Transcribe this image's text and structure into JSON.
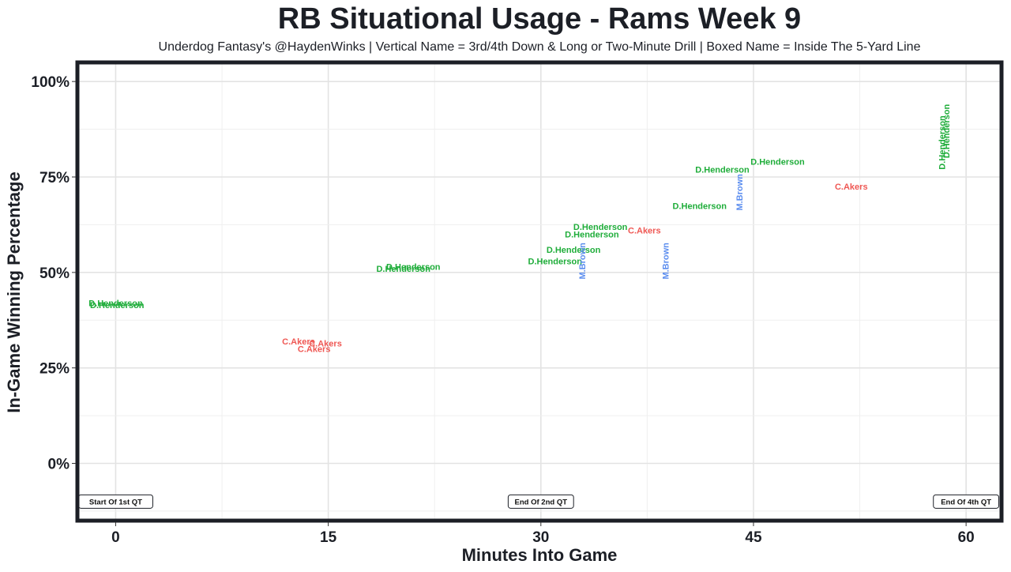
{
  "chart_data": {
    "type": "scatter",
    "title": "RB Situational Usage - Rams Week 9",
    "subtitle": "Underdog Fantasy's @HaydenWinks | Vertical Name = 3rd/4th Down & Long or Two-Minute Drill | Boxed Name = Inside The 5-Yard Line",
    "xlabel": "Minutes Into Game",
    "ylabel": "In-Game Winning Percentage",
    "xlim": [
      -2.7,
      62.5
    ],
    "ylim": [
      -15,
      105
    ],
    "x_ticks": [
      {
        "value": 0,
        "label": "0"
      },
      {
        "value": 15,
        "label": "15"
      },
      {
        "value": 30,
        "label": "30"
      },
      {
        "value": 45,
        "label": "45"
      },
      {
        "value": 60,
        "label": "60"
      }
    ],
    "y_ticks": [
      {
        "value": 0,
        "label": "0%"
      },
      {
        "value": 25,
        "label": "25%"
      },
      {
        "value": 50,
        "label": "50%"
      },
      {
        "value": 75,
        "label": "75%"
      },
      {
        "value": 100,
        "label": "100%"
      }
    ],
    "grid": true,
    "series": [
      {
        "name": "D.Henderson",
        "color": "#1fad3a"
      },
      {
        "name": "C.Akers",
        "color": "#ef5753"
      },
      {
        "name": "M.Brown",
        "color": "#5b8def"
      }
    ],
    "points": [
      {
        "label": "D.Henderson",
        "x": 0.0,
        "y": 42.0,
        "vertical": false
      },
      {
        "label": "D.Henderson",
        "x": 0.1,
        "y": 41.5,
        "vertical": false
      },
      {
        "label": "C.Akers",
        "x": 12.9,
        "y": 32.0,
        "vertical": false
      },
      {
        "label": "C.Akers",
        "x": 14.8,
        "y": 31.5,
        "vertical": false
      },
      {
        "label": "C.Akers",
        "x": 14.0,
        "y": 30.0,
        "vertical": false
      },
      {
        "label": "D.Henderson",
        "x": 21.0,
        "y": 51.5,
        "vertical": false
      },
      {
        "label": "D.Henderson",
        "x": 20.3,
        "y": 51.0,
        "vertical": false
      },
      {
        "label": "D.Henderson",
        "x": 31.0,
        "y": 53.0,
        "vertical": false
      },
      {
        "label": "D.Henderson",
        "x": 32.3,
        "y": 56.0,
        "vertical": false
      },
      {
        "label": "D.Henderson",
        "x": 33.6,
        "y": 60.0,
        "vertical": false
      },
      {
        "label": "D.Henderson",
        "x": 34.2,
        "y": 62.0,
        "vertical": false
      },
      {
        "label": "C.Akers",
        "x": 37.3,
        "y": 61.0,
        "vertical": false
      },
      {
        "label": "M.Brown",
        "x": 32.9,
        "y": 53.0,
        "vertical": true
      },
      {
        "label": "M.Brown",
        "x": 38.8,
        "y": 53.0,
        "vertical": true
      },
      {
        "label": "D.Henderson",
        "x": 41.2,
        "y": 67.5,
        "vertical": false
      },
      {
        "label": "D.Henderson",
        "x": 42.8,
        "y": 77.0,
        "vertical": false
      },
      {
        "label": "D.Henderson",
        "x": 46.7,
        "y": 79.0,
        "vertical": false
      },
      {
        "label": "M.Brown",
        "x": 44.0,
        "y": 71.0,
        "vertical": true
      },
      {
        "label": "C.Akers",
        "x": 51.9,
        "y": 72.5,
        "vertical": false
      },
      {
        "label": "D.Henderson",
        "x": 58.3,
        "y": 84.0,
        "vertical": true
      },
      {
        "label": "D.Henderson",
        "x": 58.6,
        "y": 87.0,
        "vertical": true
      }
    ],
    "quarter_markers": [
      {
        "x": 0,
        "label": "Start Of 1st QT"
      },
      {
        "x": 30,
        "label": "End Of 2nd QT"
      },
      {
        "x": 60,
        "label": "End Of 4th QT"
      }
    ]
  }
}
